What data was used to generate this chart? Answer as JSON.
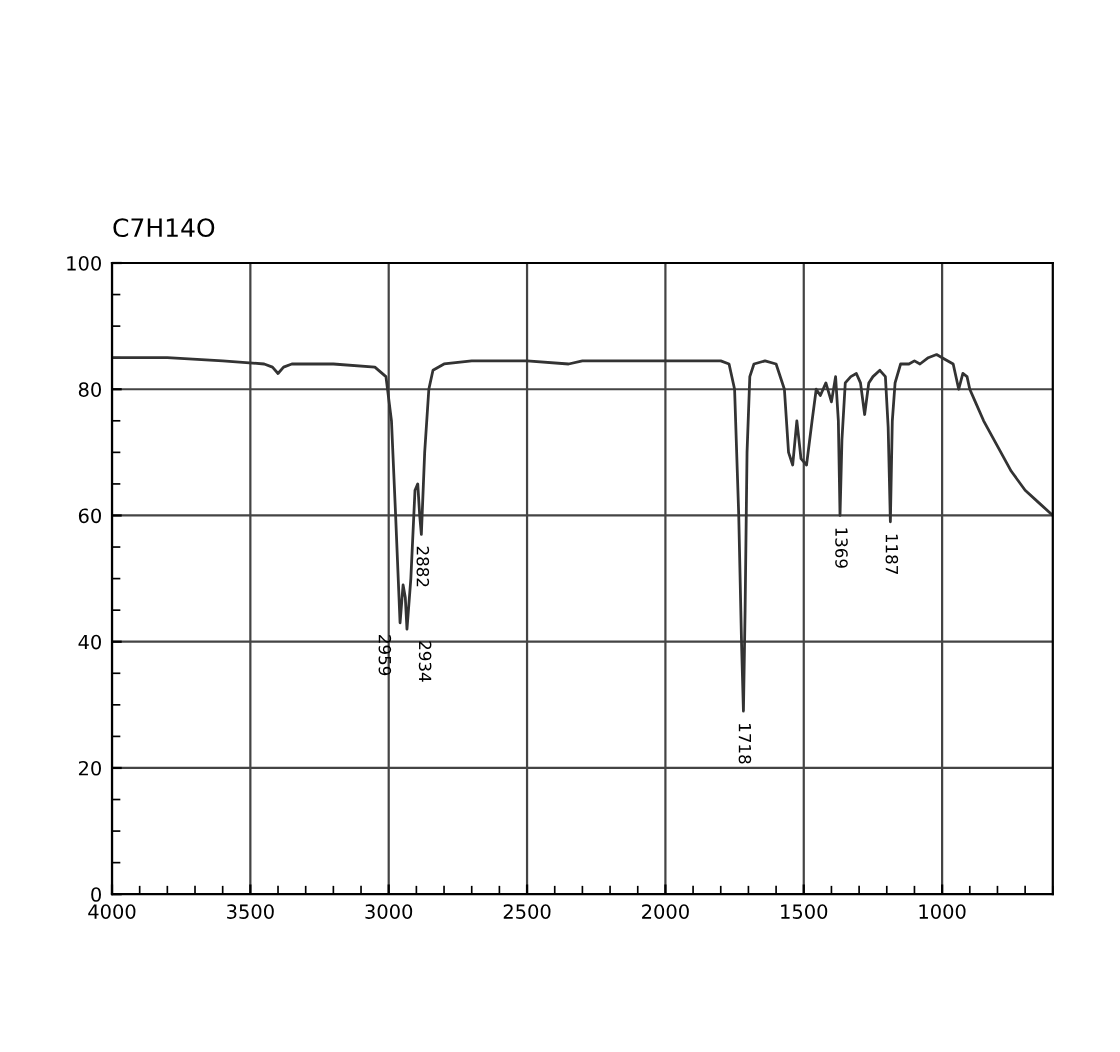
{
  "chart_data": {
    "type": "line",
    "title": "C7H14O",
    "x": [
      4000,
      3800,
      3600,
      3450,
      3420,
      3400,
      3380,
      3350,
      3200,
      3050,
      3010,
      2990,
      2975,
      2959,
      2948,
      2940,
      2934,
      2920,
      2905,
      2895,
      2888,
      2882,
      2870,
      2855,
      2840,
      2800,
      2700,
      2500,
      2350,
      2300,
      2100,
      1900,
      1800,
      1770,
      1750,
      1735,
      1725,
      1718,
      1712,
      1705,
      1695,
      1680,
      1640,
      1600,
      1570,
      1555,
      1540,
      1525,
      1510,
      1490,
      1470,
      1455,
      1440,
      1420,
      1400,
      1385,
      1375,
      1369,
      1362,
      1350,
      1330,
      1310,
      1295,
      1280,
      1265,
      1250,
      1225,
      1205,
      1195,
      1187,
      1180,
      1170,
      1150,
      1120,
      1100,
      1080,
      1050,
      1020,
      1000,
      960,
      940,
      925,
      910,
      900,
      880,
      850,
      800,
      750,
      700,
      650,
      600
    ],
    "series": [
      {
        "color": "#333333",
        "values": [
          85,
          85,
          84.5,
          84,
          83.5,
          82.5,
          83.5,
          84,
          84,
          83.5,
          82,
          75,
          60,
          43,
          49,
          47,
          42,
          50,
          64,
          65,
          60,
          57,
          70,
          80,
          83,
          84,
          84.5,
          84.5,
          84,
          84.5,
          84.5,
          84.5,
          84.5,
          84,
          80,
          60,
          40,
          29,
          45,
          70,
          82,
          84,
          84.5,
          84,
          80,
          70,
          68,
          75,
          69,
          68,
          75,
          80,
          79,
          81,
          78,
          82,
          75,
          60,
          72,
          81,
          82,
          82.5,
          81,
          76,
          81,
          82,
          83,
          82,
          74,
          59,
          75,
          81,
          84,
          84,
          84.5,
          84,
          85,
          85.5,
          85,
          84,
          80,
          82.5,
          82,
          80,
          78,
          75,
          71,
          67,
          64,
          62,
          60
        ]
      }
    ],
    "xlim": [
      4000,
      600
    ],
    "xticks": [
      4000,
      3500,
      3000,
      2500,
      2000,
      1500,
      1000
    ],
    "ylim": [
      0,
      100
    ],
    "yticks": [
      0,
      20,
      40,
      60,
      80,
      100
    ],
    "grid": true,
    "annotations": [
      {
        "text": "2959",
        "x": 2959,
        "y": 43
      },
      {
        "text": "2934",
        "x": 2934,
        "y": 42
      },
      {
        "text": "2882",
        "x": 2882,
        "y": 57
      },
      {
        "text": "1718",
        "x": 1718,
        "y": 29
      },
      {
        "text": "1369",
        "x": 1369,
        "y": 60
      },
      {
        "text": "1187",
        "x": 1187,
        "y": 59
      }
    ]
  }
}
